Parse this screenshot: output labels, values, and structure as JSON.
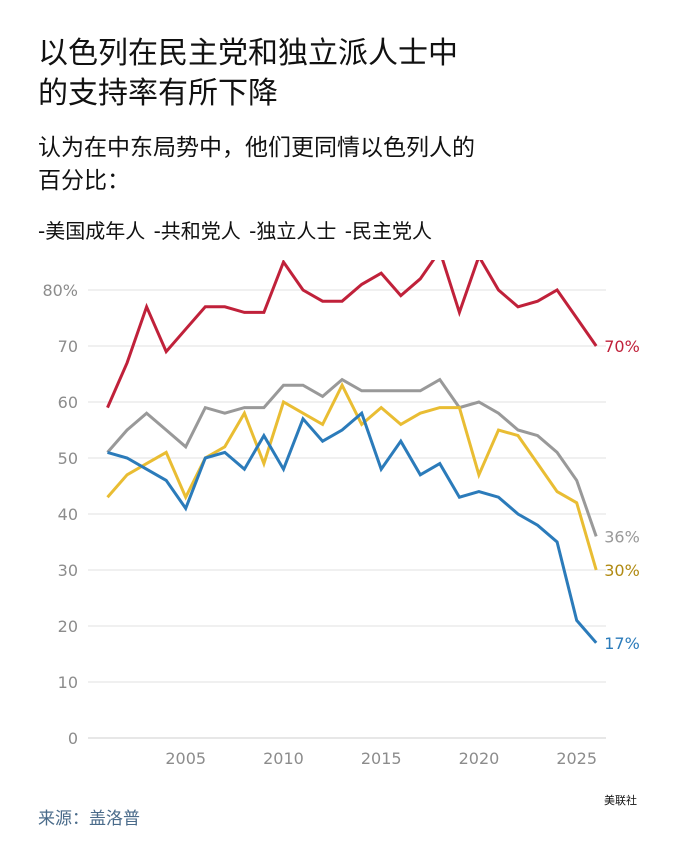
{
  "title": {
    "line1": "以色列在民主党和独立派人士中",
    "line2": "的支持率有所下降"
  },
  "subtitle": {
    "line1": "认为在中东局势中，他们更同情以色列人的",
    "line2": "百分比："
  },
  "legend_items": [
    "-美国成年人",
    "-共和党人",
    "-独立人士",
    "-民主党人"
  ],
  "source": "来源：盖洛普",
  "credit": "美联社",
  "chart_data": {
    "type": "line",
    "title": "以色列在民主党和独立派人士中的支持率有所下降",
    "subtitle": "认为在中东局势中，他们更同情以色列人的百分比：",
    "xlabel": "",
    "ylabel": "",
    "xlim": [
      2000,
      2026.5
    ],
    "ylim": [
      0,
      80
    ],
    "grid": true,
    "y_ticks": [
      0,
      10,
      20,
      30,
      40,
      50,
      60,
      70,
      80
    ],
    "y_tick_labels": [
      "0",
      "10",
      "20",
      "30",
      "40",
      "50",
      "60",
      "70",
      "80%"
    ],
    "x_ticks": [
      2005,
      2010,
      2015,
      2020,
      2025
    ],
    "x_tick_labels": [
      "2005",
      "2010",
      "2015",
      "2020",
      "2025"
    ],
    "x": [
      2001,
      2002,
      2003,
      2004,
      2005,
      2006,
      2007,
      2008,
      2009,
      2010,
      2011,
      2012,
      2013,
      2014,
      2015,
      2016,
      2017,
      2018,
      2019,
      2020,
      2021,
      2022,
      2023,
      2024,
      2025,
      2026
    ],
    "series": [
      {
        "name": "共和党人",
        "color": "#c0213a",
        "end_label": "70%",
        "values": [
          59,
          67,
          77,
          69,
          73,
          77,
          77,
          76,
          76,
          85,
          80,
          78,
          78,
          81,
          83,
          79,
          82,
          87,
          76,
          86,
          80,
          77,
          78,
          80,
          75,
          70
        ]
      },
      {
        "name": "美国成年人",
        "color": "#999999",
        "end_label": "36%",
        "values": [
          51,
          55,
          58,
          55,
          52,
          59,
          58,
          59,
          59,
          63,
          63,
          61,
          64,
          62,
          62,
          62,
          62,
          64,
          59,
          60,
          58,
          55,
          54,
          51,
          46,
          36
        ]
      },
      {
        "name": "独立人士",
        "color": "#e9bd33",
        "end_label": "30%",
        "values": [
          43,
          47,
          49,
          51,
          43,
          50,
          52,
          58,
          49,
          60,
          58,
          56,
          63,
          56,
          59,
          56,
          58,
          59,
          59,
          47,
          55,
          54,
          49,
          44,
          42,
          30
        ]
      },
      {
        "name": "民主党人",
        "color": "#2b7bba",
        "end_label": "17%",
        "values": [
          51,
          50,
          48,
          46,
          41,
          50,
          51,
          48,
          54,
          48,
          57,
          53,
          55,
          58,
          48,
          53,
          47,
          49,
          43,
          44,
          43,
          40,
          38,
          35,
          21,
          17
        ]
      }
    ]
  }
}
